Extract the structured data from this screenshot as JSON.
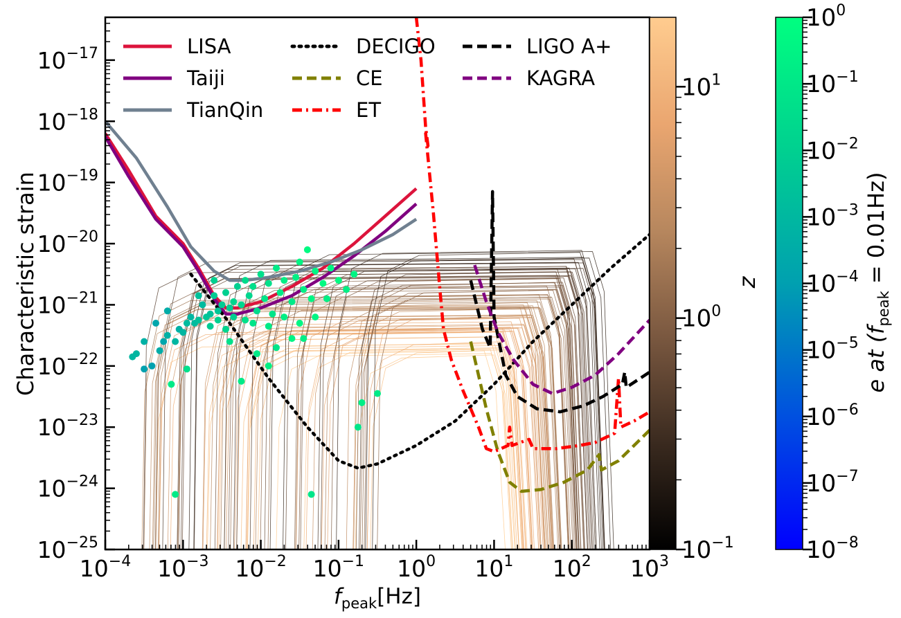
{
  "chart_data": {
    "type": "line",
    "xlabel": {
      "main": "f",
      "sub": "peak",
      "unit": "[Hz]"
    },
    "ylabel": "Characteristic strain",
    "xscale": "log",
    "yscale": "log",
    "xlim_exp": [
      -4,
      3
    ],
    "ylim_exp": [
      -25,
      -16.3
    ],
    "x_tick_labels": [
      {
        "exp": -4,
        "text": "10",
        "sup": "−4"
      },
      {
        "exp": -3,
        "text": "10",
        "sup": "−3"
      },
      {
        "exp": -2,
        "text": "10",
        "sup": "−2"
      },
      {
        "exp": -1,
        "text": "10",
        "sup": "−1"
      },
      {
        "exp": 0,
        "text": "10",
        "sup": "0"
      },
      {
        "exp": 1,
        "text": "10",
        "sup": "1"
      },
      {
        "exp": 2,
        "text": "10",
        "sup": "2"
      },
      {
        "exp": 3,
        "text": "10",
        "sup": "3"
      }
    ],
    "y_tick_labels": [
      {
        "exp": -25,
        "text": "10",
        "sup": "−25"
      },
      {
        "exp": -24,
        "text": "10",
        "sup": "−24"
      },
      {
        "exp": -23,
        "text": "10",
        "sup": "−23"
      },
      {
        "exp": -22,
        "text": "10",
        "sup": "−22"
      },
      {
        "exp": -21,
        "text": "10",
        "sup": "−21"
      },
      {
        "exp": -20,
        "text": "10",
        "sup": "−20"
      },
      {
        "exp": -19,
        "text": "10",
        "sup": "−19"
      },
      {
        "exp": -18,
        "text": "10",
        "sup": "−18"
      },
      {
        "exp": -17,
        "text": "10",
        "sup": "−17"
      }
    ],
    "legend": {
      "placement": "top-left",
      "columns": 3,
      "entries": [
        {
          "label": "LISA",
          "color": "#dc143c",
          "style": "solid"
        },
        {
          "label": "Taiji",
          "color": "#800080",
          "style": "solid"
        },
        {
          "label": "TianQin",
          "color": "#708090",
          "style": "solid"
        },
        {
          "label": "DECIGO",
          "color": "#000000",
          "style": "dotted"
        },
        {
          "label": "CE",
          "color": "#808000",
          "style": "dashed"
        },
        {
          "label": "ET",
          "color": "#ff0000",
          "style": "dashdot"
        },
        {
          "label": "LIGO A+",
          "color": "#000000",
          "style": "dashed"
        },
        {
          "label": "KAGRA",
          "color": "#800080",
          "style": "dashed"
        }
      ]
    },
    "series": [
      {
        "name": "LISA",
        "color": "#dc143c",
        "style": "solid",
        "points": [
          [
            -4,
            -18.2
          ],
          [
            -3.7,
            -18.8
          ],
          [
            -3.35,
            -19.55
          ],
          [
            -3,
            -20
          ],
          [
            -2.8,
            -20.4
          ],
          [
            -2.6,
            -20.85
          ],
          [
            -2.45,
            -21.05
          ],
          [
            -2.3,
            -21.05
          ],
          [
            -2,
            -20.95
          ],
          [
            -1.6,
            -20.7
          ],
          [
            -1.2,
            -20.4
          ],
          [
            -0.8,
            -20
          ],
          [
            -0.4,
            -19.55
          ],
          [
            0,
            -19.1
          ]
        ]
      },
      {
        "name": "Taiji",
        "color": "#800080",
        "style": "solid",
        "points": [
          [
            -4,
            -18.25
          ],
          [
            -3.7,
            -18.9
          ],
          [
            -3.35,
            -19.6
          ],
          [
            -3,
            -20.05
          ],
          [
            -2.8,
            -20.45
          ],
          [
            -2.6,
            -20.9
          ],
          [
            -2.45,
            -21.15
          ],
          [
            -2.3,
            -21.15
          ],
          [
            -2,
            -21.05
          ],
          [
            -1.6,
            -20.85
          ],
          [
            -1.2,
            -20.55
          ],
          [
            -0.8,
            -20.2
          ],
          [
            -0.4,
            -19.8
          ],
          [
            0,
            -19.35
          ]
        ]
      },
      {
        "name": "TianQin",
        "color": "#708090",
        "style": "solid",
        "points": [
          [
            -4,
            -18
          ],
          [
            -3.6,
            -18.6
          ],
          [
            -3.2,
            -19.4
          ],
          [
            -2.9,
            -20.05
          ],
          [
            -2.6,
            -20.45
          ],
          [
            -2.4,
            -20.6
          ],
          [
            -2.2,
            -20.6
          ],
          [
            -1.9,
            -20.55
          ],
          [
            -1.5,
            -20.45
          ],
          [
            -1.1,
            -20.3
          ],
          [
            -0.7,
            -20.1
          ],
          [
            -0.3,
            -19.85
          ],
          [
            0,
            -19.6
          ]
        ]
      },
      {
        "name": "DECIGO",
        "color": "#000000",
        "style": "dotted",
        "points": [
          [
            -2.9,
            -20.5
          ],
          [
            -2.4,
            -21.3
          ],
          [
            -1.9,
            -22.2
          ],
          [
            -1.4,
            -23
          ],
          [
            -1,
            -23.55
          ],
          [
            -0.75,
            -23.67
          ],
          [
            -0.5,
            -23.6
          ],
          [
            0,
            -23.3
          ],
          [
            0.5,
            -22.9
          ],
          [
            1,
            -22.3
          ],
          [
            1.5,
            -21.6
          ],
          [
            2,
            -21
          ],
          [
            2.5,
            -20.4
          ],
          [
            3,
            -19.85
          ]
        ]
      },
      {
        "name": "CE",
        "color": "#808000",
        "style": "dashed",
        "points": [
          [
            0.7,
            -21.6
          ],
          [
            0.9,
            -22.7
          ],
          [
            1.05,
            -23.4
          ],
          [
            1.2,
            -23.9
          ],
          [
            1.35,
            -24.05
          ],
          [
            1.6,
            -24.02
          ],
          [
            1.9,
            -23.9
          ],
          [
            2.2,
            -23.7
          ],
          [
            2.35,
            -23.45
          ],
          [
            2.38,
            -23.7
          ],
          [
            2.6,
            -23.55
          ],
          [
            3,
            -23.05
          ]
        ]
      },
      {
        "name": "ET",
        "color": "#ff0000",
        "style": "dashdot",
        "points": [
          [
            0,
            -16.3
          ],
          [
            0.06,
            -17
          ],
          [
            0.12,
            -18.1
          ],
          [
            0.15,
            -18.4
          ],
          [
            0.12,
            -18.2
          ],
          [
            0.22,
            -19.5
          ],
          [
            0.3,
            -20.7
          ],
          [
            0.35,
            -21.4
          ],
          [
            0.45,
            -21.9
          ],
          [
            0.6,
            -22.4
          ],
          [
            0.8,
            -23
          ],
          [
            0.9,
            -23.35
          ],
          [
            1,
            -23.4
          ],
          [
            1.18,
            -23.3
          ],
          [
            1.2,
            -23
          ],
          [
            1.23,
            -23.3
          ],
          [
            1.45,
            -23.2
          ],
          [
            1.5,
            -23.35
          ],
          [
            1.8,
            -23.35
          ],
          [
            2.1,
            -23.3
          ],
          [
            2.3,
            -23.25
          ],
          [
            2.55,
            -23.1
          ],
          [
            2.6,
            -22.2
          ],
          [
            2.63,
            -23
          ],
          [
            2.8,
            -22.9
          ],
          [
            3,
            -22.75
          ]
        ]
      },
      {
        "name": "LIGO A+",
        "color": "#000000",
        "style": "dashed",
        "points": [
          [
            0.7,
            -20.6
          ],
          [
            0.85,
            -21.4
          ],
          [
            0.95,
            -21.7
          ],
          [
            0.98,
            -19.15
          ],
          [
            1,
            -21.2
          ],
          [
            1.15,
            -22.15
          ],
          [
            1.3,
            -22.5
          ],
          [
            1.55,
            -22.7
          ],
          [
            1.85,
            -22.75
          ],
          [
            2.15,
            -22.65
          ],
          [
            2.4,
            -22.5
          ],
          [
            2.65,
            -22.3
          ],
          [
            2.68,
            -22.1
          ],
          [
            2.7,
            -22.35
          ],
          [
            3,
            -22.1
          ]
        ]
      },
      {
        "name": "KAGRA",
        "color": "#800080",
        "style": "dashed",
        "points": [
          [
            0.75,
            -20.35
          ],
          [
            0.9,
            -20.95
          ],
          [
            1.05,
            -21.45
          ],
          [
            1.25,
            -21.9
          ],
          [
            1.5,
            -22.3
          ],
          [
            1.75,
            -22.45
          ],
          [
            2,
            -22.35
          ],
          [
            2.3,
            -22.15
          ],
          [
            2.6,
            -21.8
          ],
          [
            3,
            -21.25
          ]
        ]
      }
    ],
    "colorbar_z": {
      "label": "z",
      "range_exp": [
        -1,
        1.3
      ],
      "ticks": [
        {
          "exp": -1,
          "text": "10",
          "sup": "−1"
        },
        {
          "exp": 0,
          "text": "10",
          "sup": "0"
        },
        {
          "exp": 1,
          "text": "10",
          "sup": "1"
        }
      ],
      "stops": [
        "#000000",
        "#3a2a1f",
        "#7a5840",
        "#b7875e",
        "#eaa670",
        "#ffcc8f"
      ]
    },
    "colorbar_e": {
      "label": {
        "main": "e at (f",
        "sub": "peak",
        "rest": " = 0.01Hz)"
      },
      "range_exp": [
        -8,
        0
      ],
      "ticks": [
        {
          "exp": -8,
          "text": "10",
          "sup": "−8"
        },
        {
          "exp": -7,
          "text": "10",
          "sup": "−7"
        },
        {
          "exp": -6,
          "text": "10",
          "sup": "−6"
        },
        {
          "exp": -5,
          "text": "10",
          "sup": "−5"
        },
        {
          "exp": -4,
          "text": "10",
          "sup": "−4"
        },
        {
          "exp": -3,
          "text": "10",
          "sup": "−3"
        },
        {
          "exp": -2,
          "text": "10",
          "sup": "−2"
        },
        {
          "exp": -1,
          "text": "10",
          "sup": "−1"
        },
        {
          "exp": 0,
          "text": "10",
          "sup": "0"
        }
      ],
      "stops": [
        "#0000ff",
        "#0050e0",
        "#00a0b0",
        "#00d090",
        "#00ff80"
      ]
    },
    "scatter_points": [
      [
        -3.5,
        -22.05,
        0.1
      ],
      [
        -3.4,
        -22.0,
        0.1
      ],
      [
        -3.3,
        -21.75,
        0.2
      ],
      [
        -3.25,
        -21.6,
        0.15
      ],
      [
        -3.2,
        -21.5,
        0.25
      ],
      [
        -3.1,
        -21.6,
        0.3
      ],
      [
        -3.05,
        -21.4,
        0.25
      ],
      [
        -3.0,
        -21.45,
        0.3
      ],
      [
        -2.95,
        -21.3,
        0.35
      ],
      [
        -2.9,
        -21.2,
        0.3
      ],
      [
        -2.85,
        -21.3,
        0.35
      ],
      [
        -2.8,
        -21.25,
        0.4
      ],
      [
        -2.75,
        -21.0,
        0.35
      ],
      [
        -2.7,
        -21.2,
        0.45
      ],
      [
        -2.65,
        -21.15,
        0.4
      ],
      [
        -2.6,
        -20.85,
        0.5
      ],
      [
        -2.55,
        -21.1,
        0.45
      ],
      [
        -2.5,
        -21.0,
        0.5
      ],
      [
        -2.45,
        -20.8,
        0.55
      ],
      [
        -2.4,
        -21.05,
        0.5
      ],
      [
        -2.35,
        -20.95,
        0.6
      ],
      [
        -2.3,
        -20.7,
        0.55
      ],
      [
        -2.25,
        -21.0,
        0.6
      ],
      [
        -2.2,
        -20.6,
        0.65
      ],
      [
        -2.15,
        -20.85,
        0.6
      ],
      [
        -2.1,
        -20.7,
        0.7
      ],
      [
        -2.05,
        -21.1,
        0.65
      ],
      [
        -2.0,
        -20.5,
        0.7
      ],
      [
        -1.95,
        -20.9,
        0.75
      ],
      [
        -1.9,
        -20.65,
        0.7
      ],
      [
        -1.85,
        -21.15,
        0.75
      ],
      [
        -1.8,
        -20.4,
        0.8
      ],
      [
        -1.75,
        -20.8,
        0.8
      ],
      [
        -1.7,
        -20.6,
        0.85
      ],
      [
        -1.6,
        -20.95,
        0.8
      ],
      [
        -1.55,
        -20.55,
        0.85
      ],
      [
        -1.5,
        -20.3,
        0.9
      ],
      [
        -1.45,
        -20.75,
        0.85
      ],
      [
        -1.4,
        -20.1,
        0.95
      ],
      [
        -1.35,
        -20.9,
        0.9
      ],
      [
        -1.3,
        -20.45,
        0.9
      ],
      [
        -1.2,
        -20.65,
        0.95
      ],
      [
        -1.1,
        -20.4,
        0.9
      ],
      [
        -1.0,
        -20.6,
        0.95
      ],
      [
        -0.9,
        -20.75,
        0.85
      ],
      [
        -0.8,
        -20.5,
        0.9
      ],
      [
        -2.65,
        -21.35,
        0.5
      ],
      [
        -2.55,
        -21.25,
        0.55
      ],
      [
        -2.45,
        -21.4,
        0.6
      ],
      [
        -2.35,
        -21.2,
        0.55
      ],
      [
        -2.2,
        -21.25,
        0.7
      ],
      [
        -2.1,
        -21.3,
        0.75
      ],
      [
        -1.9,
        -21.35,
        0.8
      ],
      [
        -1.7,
        -21.2,
        0.85
      ],
      [
        -2.95,
        -22.05,
        0.7
      ],
      [
        -3.15,
        -22.3,
        0.8
      ],
      [
        -3.35,
        -21.3,
        0.15
      ],
      [
        -3.2,
        -21.1,
        0.2
      ],
      [
        -3.5,
        -21.6,
        0.25
      ],
      [
        -3.6,
        -21.8,
        0.3
      ],
      [
        -3.65,
        -21.85,
        0.3
      ],
      [
        -2.25,
        -22.25,
        0.8
      ],
      [
        -1.9,
        -22.0,
        0.85
      ],
      [
        -1.6,
        -21.55,
        0.9
      ],
      [
        -1.5,
        -21.3,
        0.9
      ],
      [
        -1.45,
        -21.55,
        0.85
      ],
      [
        -0.7,
        -22.6,
        0.85
      ],
      [
        -0.5,
        -22.45,
        0.8
      ],
      [
        -0.75,
        -23.0,
        0.75
      ],
      [
        -3.1,
        -24.1,
        0.8
      ],
      [
        -1.35,
        -24.1,
        0.75
      ],
      [
        -2.05,
        -21.8,
        0.8
      ],
      [
        -1.8,
        -21.7,
        0.75
      ],
      [
        -2.4,
        -21.6,
        0.7
      ],
      [
        -1.3,
        -21.2,
        0.9
      ],
      [
        -1.15,
        -20.9,
        0.85
      ],
      [
        -2.8,
        -20.85,
        0.4
      ],
      [
        -2.6,
        -20.6,
        0.55
      ]
    ]
  }
}
